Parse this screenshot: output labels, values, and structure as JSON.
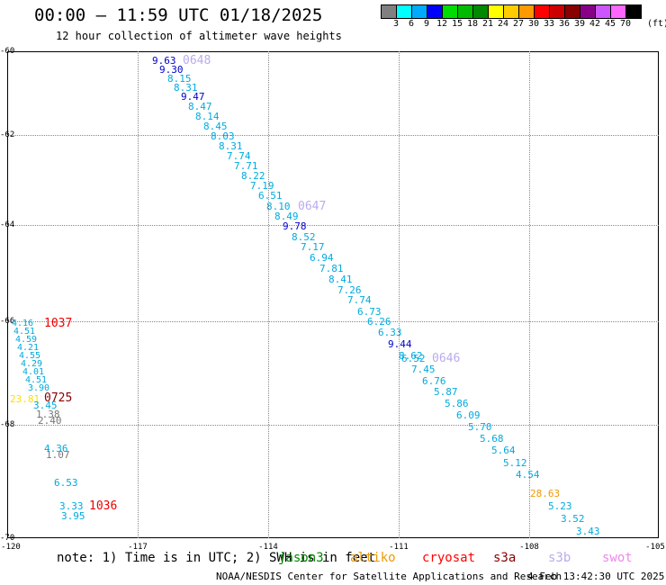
{
  "title": "00:00 – 11:59 UTC 01/18/2025",
  "subtitle": "12 hour collection of altimeter wave heights",
  "colorbar": {
    "labels": [
      "3",
      "6",
      "9",
      "12",
      "15",
      "18",
      "21",
      "24",
      "27",
      "30",
      "33",
      "36",
      "39",
      "42",
      "45",
      "70"
    ],
    "unit": "(ft)",
    "colors": [
      "#808080",
      "#00ffff",
      "#00aaff",
      "#0000ff",
      "#00dd00",
      "#00bb00",
      "#008800",
      "#ffff00",
      "#ffcc00",
      "#ff9900",
      "#ff0000",
      "#cc0000",
      "#880000",
      "#880088",
      "#cc55ff",
      "#ff66ff",
      "#000000"
    ]
  },
  "axes": {
    "y_ticks": [
      "-60",
      "-62",
      "-64",
      "-66",
      "-68",
      "-70"
    ],
    "x_ticks": [
      "-120",
      "-117",
      "-114",
      "-111",
      "-108",
      "-105"
    ]
  },
  "passes": [
    "0648",
    "0647",
    "0646",
    "1037",
    "0725",
    "1036"
  ],
  "wave_labels": [
    {
      "text": "9.63",
      "color": "#0000cc"
    },
    {
      "text": "9.30",
      "color": "#0000cc"
    },
    {
      "text": "8.15",
      "color": "#00aadd"
    },
    {
      "text": "8.31",
      "color": "#00aadd"
    },
    {
      "text": "9.47",
      "color": "#0000cc"
    },
    {
      "text": "8.47",
      "color": "#00aadd"
    },
    {
      "text": "8.14",
      "color": "#00aadd"
    },
    {
      "text": "8.45",
      "color": "#00aadd"
    },
    {
      "text": "8.03",
      "color": "#00aadd"
    },
    {
      "text": "8.31",
      "color": "#00aadd"
    },
    {
      "text": "7.74",
      "color": "#00aadd"
    },
    {
      "text": "7.71",
      "color": "#00aadd"
    },
    {
      "text": "8.22",
      "color": "#00aadd"
    },
    {
      "text": "7.19",
      "color": "#00aadd"
    },
    {
      "text": "6.51",
      "color": "#00aadd"
    },
    {
      "text": "8.10",
      "color": "#00aadd"
    },
    {
      "text": "8.49",
      "color": "#00aadd"
    },
    {
      "text": "9.78",
      "color": "#0000cc"
    },
    {
      "text": "8.52",
      "color": "#00aadd"
    },
    {
      "text": "7.17",
      "color": "#00aadd"
    },
    {
      "text": "6.94",
      "color": "#00aadd"
    },
    {
      "text": "7.81",
      "color": "#00aadd"
    },
    {
      "text": "8.41",
      "color": "#00aadd"
    },
    {
      "text": "7.26",
      "color": "#00aadd"
    },
    {
      "text": "7.74",
      "color": "#00aadd"
    },
    {
      "text": "6.73",
      "color": "#00aadd"
    },
    {
      "text": "6.26",
      "color": "#00aadd"
    },
    {
      "text": "6.33",
      "color": "#00aadd"
    },
    {
      "text": "9.44",
      "color": "#0000cc"
    },
    {
      "text": "8.62",
      "color": "#00aadd"
    },
    {
      "text": "6.52",
      "color": "#00aadd"
    },
    {
      "text": "7.45",
      "color": "#00aadd"
    },
    {
      "text": "6.76",
      "color": "#00aadd"
    },
    {
      "text": "5.87",
      "color": "#00aadd"
    },
    {
      "text": "5.86",
      "color": "#00aadd"
    },
    {
      "text": "6.09",
      "color": "#00aadd"
    },
    {
      "text": "5.70",
      "color": "#00aadd"
    },
    {
      "text": "5.68",
      "color": "#00aadd"
    },
    {
      "text": "5.64",
      "color": "#00aadd"
    },
    {
      "text": "5.12",
      "color": "#00aadd"
    },
    {
      "text": "4.54",
      "color": "#00aadd"
    },
    {
      "text": "28.63",
      "color": "#ee9900"
    },
    {
      "text": "5.23",
      "color": "#00aadd"
    },
    {
      "text": "3.52",
      "color": "#00aadd"
    },
    {
      "text": "3.43",
      "color": "#00aadd"
    },
    {
      "text": "23.81",
      "color": "#ffdd00"
    },
    {
      "text": "3.45",
      "color": "#00aadd"
    },
    {
      "text": "1.38",
      "color": "#777777"
    },
    {
      "text": "2.40",
      "color": "#777777"
    },
    {
      "text": "4.36",
      "color": "#00aadd"
    },
    {
      "text": "1.07",
      "color": "#777777"
    },
    {
      "text": "6.53",
      "color": "#00aadd"
    },
    {
      "text": "3.33",
      "color": "#00aadd"
    },
    {
      "text": "3.95",
      "color": "#00aadd"
    }
  ],
  "note": "note:  1) Time is in UTC;  2) SWH is in feet",
  "legend": [
    {
      "text": "jason3",
      "color": "#008800"
    },
    {
      "text": "altiko",
      "color": "#ee9900"
    },
    {
      "text": "cryosat",
      "color": "#ff0000"
    },
    {
      "text": "s3a",
      "color": "#880000"
    },
    {
      "text": "s3b",
      "color": "#bbaaee"
    },
    {
      "text": "swot",
      "color": "#ee88ee"
    }
  ],
  "footer_left": "NOAA/NESDIS Center for Satellite Applications and Research",
  "footer_right": "4 Feb 13:42:30 UTC 2025"
}
